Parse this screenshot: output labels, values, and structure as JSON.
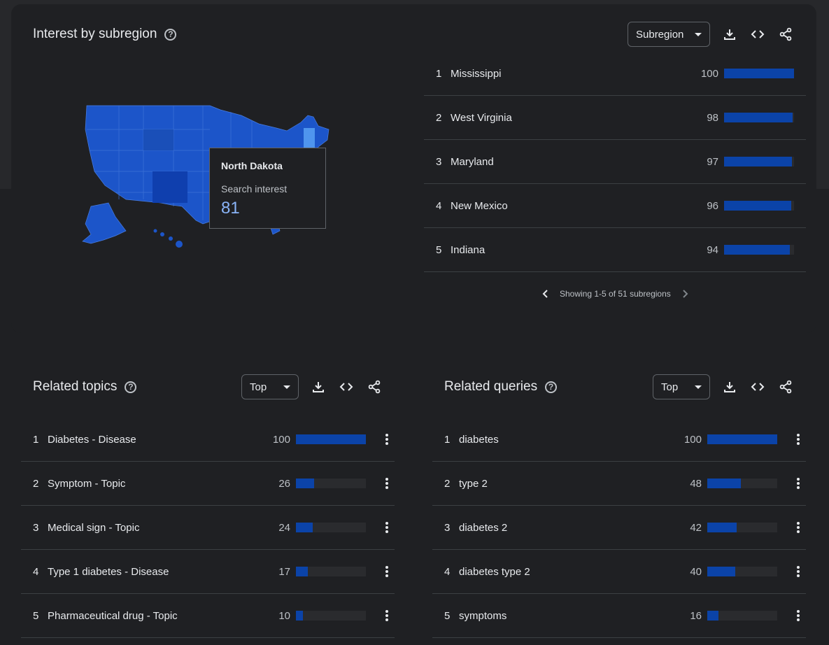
{
  "subregion": {
    "title": "Interest by subregion",
    "help_icon": "?",
    "dropdown": "Subregion",
    "tooltip": {
      "region": "North Dakota",
      "label": "Search interest",
      "value": "81"
    },
    "rows": [
      {
        "rank": "1",
        "label": "Mississippi",
        "value": "100",
        "pct": 100
      },
      {
        "rank": "2",
        "label": "West Virginia",
        "value": "98",
        "pct": 98
      },
      {
        "rank": "3",
        "label": "Maryland",
        "value": "97",
        "pct": 97
      },
      {
        "rank": "4",
        "label": "New Mexico",
        "value": "96",
        "pct": 96
      },
      {
        "rank": "5",
        "label": "Indiana",
        "value": "94",
        "pct": 94
      }
    ],
    "pager": "Showing 1-5 of 51 subregions"
  },
  "topics": {
    "title": "Related topics",
    "help_icon": "?",
    "dropdown": "Top",
    "rows": [
      {
        "rank": "1",
        "label": "Diabetes - Disease",
        "value": "100",
        "pct": 100
      },
      {
        "rank": "2",
        "label": "Symptom - Topic",
        "value": "26",
        "pct": 26
      },
      {
        "rank": "3",
        "label": "Medical sign - Topic",
        "value": "24",
        "pct": 24
      },
      {
        "rank": "4",
        "label": "Type 1 diabetes - Disease",
        "value": "17",
        "pct": 17
      },
      {
        "rank": "5",
        "label": "Pharmaceutical drug - Topic",
        "value": "10",
        "pct": 10
      }
    ]
  },
  "queries": {
    "title": "Related queries",
    "help_icon": "?",
    "dropdown": "Top",
    "rows": [
      {
        "rank": "1",
        "label": "diabetes",
        "value": "100",
        "pct": 100
      },
      {
        "rank": "2",
        "label": "type 2",
        "value": "48",
        "pct": 48
      },
      {
        "rank": "3",
        "label": "diabetes 2",
        "value": "42",
        "pct": 42
      },
      {
        "rank": "4",
        "label": "diabetes type 2",
        "value": "40",
        "pct": 40
      },
      {
        "rank": "5",
        "label": "symptoms",
        "value": "16",
        "pct": 16
      }
    ]
  },
  "icons": {
    "help": "help-circle-icon",
    "download": "download-icon",
    "embed": "code-icon",
    "share": "share-icon",
    "more": "more-vert-icon",
    "prev": "chevron-left-icon",
    "next": "chevron-right-icon",
    "dropdown": "arrow-drop-down-icon"
  },
  "colors": {
    "bar_fill": "#0b43a8",
    "bar_track": "#2a2b2e",
    "map_fill": "#1c55c9",
    "tooltip_value": "#8ab4f8"
  }
}
